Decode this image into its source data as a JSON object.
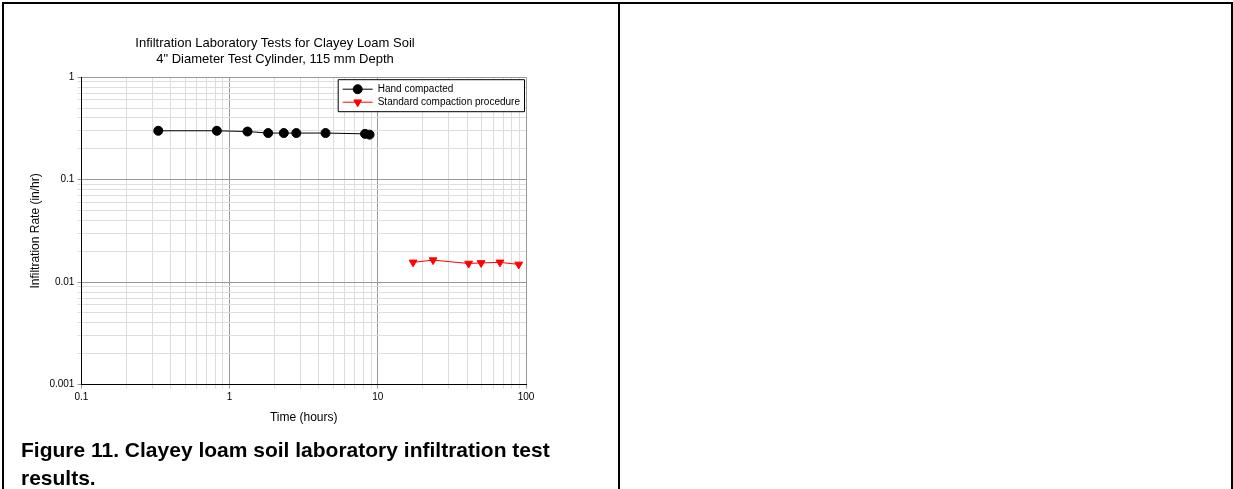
{
  "chart_data": {
    "type": "line",
    "title": "Infiltration Laboratory Tests for Clayey Loam Soil\n4\" Diameter Test Cylinder, 115 mm Depth",
    "xlabel": "Time (hours)",
    "ylabel": "Infiltration Rate (in/hr)",
    "log": "xy",
    "xlim": [
      0.1,
      100
    ],
    "xticks": [
      0.1,
      1,
      10,
      100
    ],
    "ylim": [
      0.001,
      1
    ],
    "yticks": [
      0.001,
      0.01,
      0.1,
      1
    ],
    "grid": true,
    "legend": "top right",
    "line_style": "solid",
    "series": [
      {
        "name": "Hand compacted",
        "color": "#000000",
        "marker": "circle",
        "x": [
          0.33,
          0.82,
          1.32,
          1.82,
          2.32,
          2.82,
          4.44,
          8.2,
          8.8
        ],
        "values": [
          0.3,
          0.3,
          0.295,
          0.285,
          0.285,
          0.285,
          0.285,
          0.28,
          0.275
        ]
      },
      {
        "name": "Standard compaction procedure",
        "color": "#ff0000",
        "marker": "triangle",
        "x": [
          17.3,
          23.6,
          41,
          49.8,
          66.7,
          89.3
        ],
        "values": [
          0.0156,
          0.0164,
          0.0152,
          0.0154,
          0.0156,
          0.0149
        ]
      }
    ],
    "annotations": [
      "Figure 11. Clayey loam soil laboratory infiltration test results."
    ]
  }
}
